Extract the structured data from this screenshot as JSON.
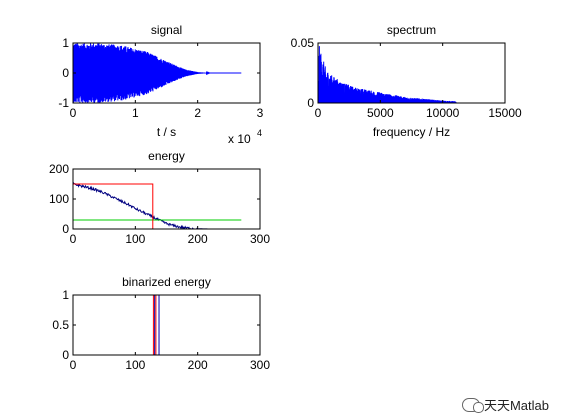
{
  "chart_data": [
    {
      "id": "signal",
      "type": "line",
      "title": "signal",
      "xlabel": "t / s",
      "ylabel": "",
      "xlim": [
        0,
        30000
      ],
      "ylim": [
        -1,
        1
      ],
      "x_ticks": [
        0,
        10000,
        20000,
        30000
      ],
      "x_tick_labels": [
        "0",
        "1",
        "2",
        "3"
      ],
      "x_exponent_label": "x 10",
      "x_exponent_power": "4",
      "y_ticks": [
        -1,
        0,
        1
      ],
      "y_tick_labels": [
        "-1",
        "0",
        "1"
      ],
      "series": [
        {
          "color": "#0000ff",
          "style": "dense oscillation envelope",
          "envelope_x": [
            0,
            4000,
            8000,
            12000,
            16000,
            18000,
            20000,
            22000,
            27000
          ],
          "envelope_amplitude": [
            1.0,
            1.0,
            0.92,
            0.7,
            0.3,
            0.12,
            0.03,
            0.0,
            0.0
          ]
        }
      ]
    },
    {
      "id": "spectrum",
      "type": "line",
      "title": "spectrum",
      "xlabel": "frequency / Hz",
      "ylabel": "",
      "xlim": [
        0,
        15000
      ],
      "ylim": [
        0,
        0.05
      ],
      "x_ticks": [
        0,
        5000,
        10000,
        15000
      ],
      "x_tick_labels": [
        "0",
        "5000",
        "10000",
        "15000"
      ],
      "y_ticks": [
        0,
        0.05
      ],
      "y_tick_labels": [
        "0",
        "0.05"
      ],
      "series": [
        {
          "color": "#0000ff",
          "style": "dense spectrum fill",
          "envelope_x": [
            0,
            100,
            300,
            600,
            1000,
            2000,
            3000,
            4000,
            5000,
            6000,
            7000,
            8000,
            9000,
            10000,
            11000,
            11100
          ],
          "envelope_max": [
            0.005,
            0.048,
            0.04,
            0.03,
            0.024,
            0.017,
            0.013,
            0.011,
            0.009,
            0.007,
            0.005,
            0.004,
            0.003,
            0.002,
            0.0015,
            0.0
          ]
        }
      ]
    },
    {
      "id": "energy",
      "type": "line",
      "title": "energy",
      "xlabel": "",
      "ylabel": "",
      "xlim": [
        0,
        300
      ],
      "ylim": [
        0,
        200
      ],
      "x_ticks": [
        0,
        100,
        200,
        300
      ],
      "x_tick_labels": [
        "0",
        "100",
        "200",
        "300"
      ],
      "y_ticks": [
        0,
        100,
        200
      ],
      "y_tick_labels": [
        "0",
        "100",
        "200"
      ],
      "series": [
        {
          "color": "#000080",
          "x": [
            0,
            10,
            20,
            30,
            40,
            50,
            60,
            70,
            80,
            90,
            100,
            110,
            120,
            130,
            140,
            150,
            160,
            170,
            180,
            190,
            200,
            210,
            220,
            240,
            260,
            270
          ],
          "y": [
            150,
            145,
            140,
            135,
            128,
            120,
            110,
            100,
            90,
            80,
            68,
            58,
            48,
            38,
            28,
            18,
            12,
            7,
            4,
            2,
            1,
            0.5,
            0,
            0,
            0,
            0
          ]
        },
        {
          "color": "#00cc00",
          "x": [
            0,
            270
          ],
          "y": [
            30,
            30
          ]
        },
        {
          "color": "#ff0000",
          "x": [
            0,
            128,
            128
          ],
          "y": [
            150,
            150,
            0
          ]
        }
      ]
    },
    {
      "id": "binarized_energy",
      "type": "line",
      "title": "binarized energy",
      "xlabel": "",
      "ylabel": "",
      "xlim": [
        0,
        300
      ],
      "ylim": [
        0,
        1
      ],
      "x_ticks": [
        0,
        100,
        200,
        300
      ],
      "x_tick_labels": [
        "0",
        "100",
        "200",
        "300"
      ],
      "y_ticks": [
        0,
        0.5,
        1
      ],
      "y_tick_labels": [
        "0",
        "0.5",
        "1"
      ],
      "series": [
        {
          "color": "#ff0000",
          "x": [
            0,
            129,
            129,
            133,
            133,
            270
          ],
          "y": [
            0,
            0,
            1,
            1,
            0,
            0
          ]
        },
        {
          "color": "#0000aa",
          "x": [
            0,
            131,
            131,
            138,
            138,
            270
          ],
          "y": [
            0,
            0,
            1,
            1,
            0,
            0
          ]
        }
      ]
    }
  ],
  "watermark": {
    "text": "天天Matlab",
    "icon": "wechat-icon"
  }
}
